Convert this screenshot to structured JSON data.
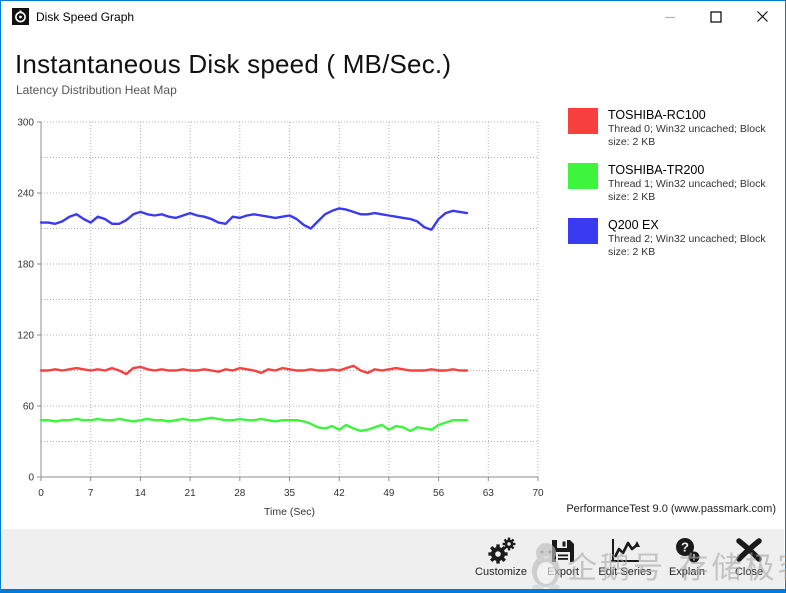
{
  "window": {
    "title": "Disk Speed Graph"
  },
  "header": {
    "title": "Instantaneous Disk speed ( MB/Sec.)",
    "subtitle": "Latency Distribution Heat Map"
  },
  "chart_data": {
    "type": "line",
    "title": "Instantaneous Disk speed ( MB/Sec.)",
    "xlabel": "Time (Sec)",
    "ylabel": "",
    "xlim": [
      0,
      70
    ],
    "ylim": [
      0,
      300
    ],
    "x_ticks": [
      0,
      7,
      14,
      21,
      28,
      35,
      42,
      49,
      56,
      63,
      70
    ],
    "y_ticks": [
      0,
      60,
      120,
      180,
      240,
      300
    ],
    "grid": "dotted gray, minor horizontal every 30, vertical every 7",
    "legend_position": "right",
    "series": [
      {
        "name": "TOSHIBA-RC100",
        "detail": "Thread 0; Win32 uncached; Block size: 2 KB",
        "color": "#f94040",
        "x_step": 1,
        "values": [
          90,
          90,
          91,
          90,
          91,
          92,
          91,
          90,
          91,
          90,
          92,
          90,
          87,
          92,
          93,
          91,
          90,
          91,
          90,
          90,
          91,
          90,
          90,
          91,
          90,
          89,
          91,
          90,
          92,
          91,
          90,
          88,
          91,
          90,
          92,
          91,
          90,
          90,
          91,
          90,
          90,
          91,
          90,
          92,
          94,
          90,
          88,
          91,
          90,
          91,
          92,
          91,
          90,
          90,
          90,
          91,
          90,
          90,
          91,
          90,
          90
        ]
      },
      {
        "name": "TOSHIBA-TR200",
        "detail": "Thread 1; Win32 uncached; Block size: 2 KB",
        "color": "#3ef53e",
        "x_step": 1,
        "values": [
          48,
          48,
          47,
          48,
          48,
          49,
          48,
          48,
          49,
          48,
          48,
          49,
          48,
          47,
          48,
          49,
          48,
          48,
          47,
          48,
          49,
          48,
          48,
          49,
          50,
          49,
          48,
          48,
          49,
          48,
          48,
          49,
          48,
          47,
          48,
          48,
          48,
          47,
          45,
          42,
          41,
          43,
          40,
          44,
          41,
          39,
          40,
          42,
          44,
          40,
          43,
          42,
          39,
          42,
          41,
          40,
          44,
          46,
          48,
          48,
          48
        ]
      },
      {
        "name": "Q200 EX",
        "detail": "Thread 2; Win32 uncached; Block size: 2 KB",
        "color": "#3a3af0",
        "x_step": 1,
        "values": [
          215,
          215,
          214,
          216,
          220,
          222,
          218,
          215,
          220,
          218,
          214,
          214,
          217,
          222,
          224,
          222,
          221,
          222,
          220,
          219,
          221,
          223,
          221,
          220,
          218,
          215,
          214,
          220,
          219,
          221,
          222,
          221,
          220,
          219,
          220,
          221,
          218,
          213,
          210,
          216,
          222,
          225,
          227,
          226,
          224,
          222,
          222,
          223,
          222,
          221,
          220,
          219,
          218,
          216,
          211,
          209,
          218,
          223,
          225,
          224,
          223
        ]
      }
    ]
  },
  "footer_note": "PerformanceTest 9.0 (www.passmark.com)",
  "toolbar": {
    "items": [
      {
        "label": "Customize",
        "icon": "gears-icon"
      },
      {
        "label": "Export",
        "icon": "floppy-icon"
      },
      {
        "label": "Edit Series",
        "icon": "edit-chart-icon"
      },
      {
        "label": "Explain",
        "icon": "question-icon"
      },
      {
        "label": "Close",
        "icon": "close-x-icon"
      }
    ]
  },
  "watermark": {
    "icon": "penguin-icon",
    "text": "企鹅号 存储极客"
  }
}
